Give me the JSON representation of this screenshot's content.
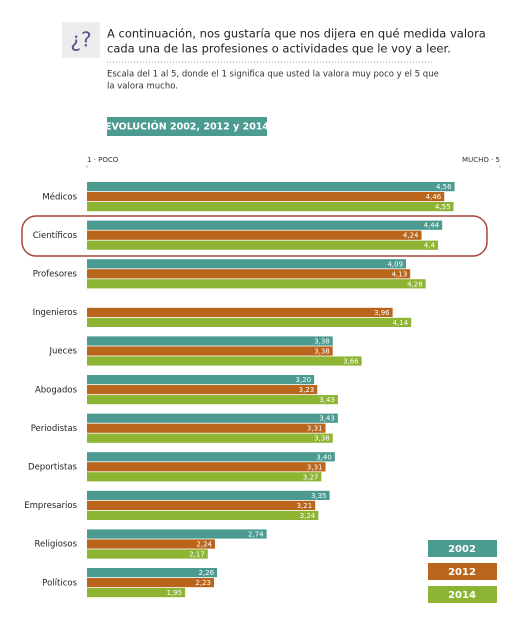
{
  "header": {
    "icon": "¿?",
    "question": [
      "A continuación, nos gustaría que nos dijera en qué medida valora",
      "cada una de las profesiones o actividades que le voy a leer."
    ],
    "scale": [
      "Escala del 1 al 5, donde el 1 significa que usted la valora muy poco y el 5 que",
      "la valora mucho."
    ]
  },
  "chart_data": {
    "type": "bar",
    "orientation": "horizontal",
    "title": "EVOLUCIÓN 2002, 2012 y 2014",
    "categories": [
      "Médicos",
      "Científicos",
      "Profesores",
      "Ingenieros",
      "Jueces",
      "Abogados",
      "Periodistas",
      "Deportistas",
      "Empresarios",
      "Religiosos",
      "Políticos"
    ],
    "series": [
      {
        "name": "2002",
        "color": "#4b9b90",
        "values": [
          4.56,
          4.44,
          4.09,
          null,
          3.38,
          3.2,
          3.43,
          3.4,
          3.35,
          2.74,
          2.26
        ],
        "value_labels": [
          "4,56",
          "4,44",
          "4,09",
          null,
          "3,38",
          "3,20",
          "3,43",
          "3,40",
          "3,35",
          "2,74",
          "2,26"
        ]
      },
      {
        "name": "2012",
        "color": "#b9661c",
        "values": [
          4.46,
          4.24,
          4.13,
          3.96,
          3.38,
          3.23,
          3.31,
          3.31,
          3.21,
          2.24,
          2.23
        ],
        "value_labels": [
          "4,46",
          "4,24",
          "4,13",
          "3,96",
          "3,38",
          "3,23",
          "3,31",
          "3,31",
          "3,21",
          "2,24",
          "2,23"
        ]
      },
      {
        "name": "2014",
        "color": "#8db533",
        "values": [
          4.55,
          4.4,
          4.28,
          4.14,
          3.66,
          3.43,
          3.38,
          3.27,
          3.24,
          2.17,
          1.95
        ],
        "value_labels": [
          "4,55",
          "4,4",
          "4,28",
          "4,14",
          "3,66",
          "3,43",
          "3,38",
          "3,27",
          "3,24",
          "2,17",
          "1,95"
        ]
      }
    ],
    "xlim": [
      1,
      5
    ],
    "xticks": [
      {
        "value": 1,
        "label": "1 · POCO"
      },
      {
        "value": 5,
        "label": "MUCHO · 5"
      }
    ]
  }
}
